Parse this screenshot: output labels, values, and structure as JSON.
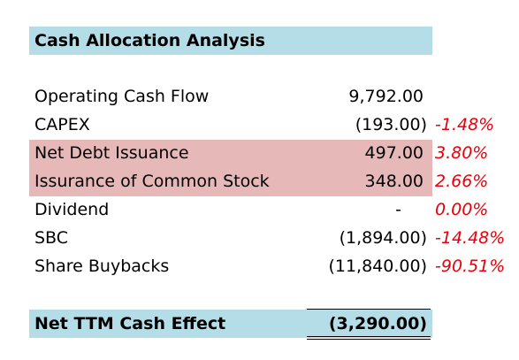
{
  "title": "Cash Allocation Analysis",
  "rows": [
    {
      "label": "Operating Cash Flow",
      "value": "9,792.00",
      "pct": ""
    },
    {
      "label": "CAPEX",
      "value": "(193.00)",
      "pct": "-1.48%"
    },
    {
      "label": "Net Debt Issuance",
      "value": "497.00",
      "pct": "3.80%"
    },
    {
      "label": "Issurance of Common Stock",
      "value": "348.00",
      "pct": "2.66%"
    },
    {
      "label": "Dividend",
      "value": "-",
      "pct": "0.00%"
    },
    {
      "label": "SBC",
      "value": "(1,894.00)",
      "pct": "-14.48%"
    },
    {
      "label": "Share Buybacks",
      "value": "(11,840.00)",
      "pct": "-90.51%"
    }
  ],
  "total": {
    "label": "Net TTM Cash Effect",
    "value": "(3,290.00)"
  },
  "colors": {
    "header_fill": "#b4dde7",
    "highlight_fill": "#e6b8b8",
    "percent_text": "#e8000b"
  }
}
